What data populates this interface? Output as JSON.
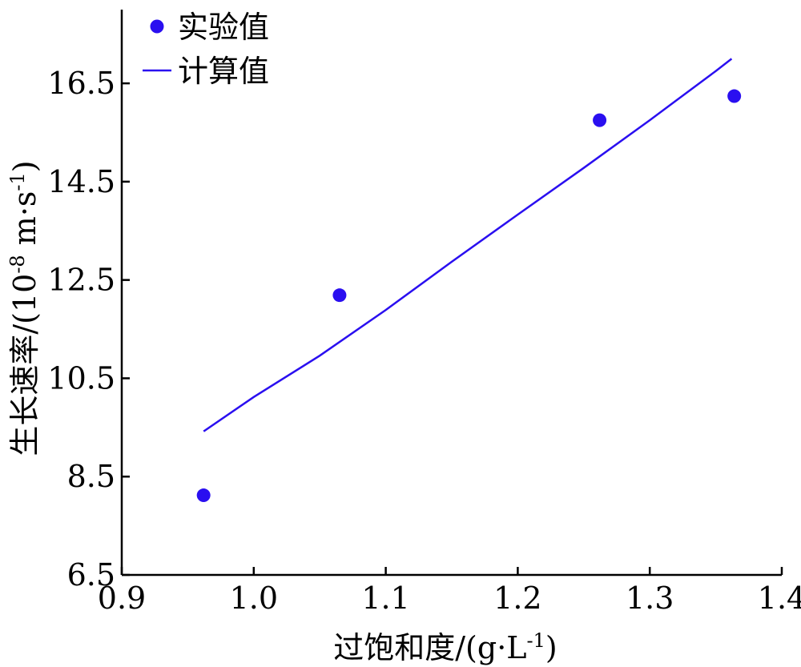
{
  "chart_data": {
    "type": "scatter",
    "title": "",
    "xlabel": "过饱和度/(g·L",
    "xlabel_sup": "-1",
    "xlabel_tail": ")",
    "ylabel": "生长速率/(10",
    "ylabel_sup1": "-8",
    "ylabel_mid": " m·s",
    "ylabel_sup2": "-1",
    "ylabel_tail": ")",
    "xlim": [
      0.9,
      1.4
    ],
    "ylim": [
      6.5,
      18.0
    ],
    "x_ticks": [
      0.9,
      1.0,
      1.1,
      1.2,
      1.3,
      1.4
    ],
    "x_tick_labels": [
      "0.9",
      "1.0",
      "1.1",
      "1.2",
      "1.3",
      "1.4"
    ],
    "y_ticks": [
      6.5,
      8.5,
      10.5,
      12.5,
      14.5,
      16.5
    ],
    "y_tick_labels": [
      "6.5",
      "8.5",
      "10.5",
      "12.5",
      "14.5",
      "16.5"
    ],
    "grid": false,
    "legend_position": "top-left",
    "series": [
      {
        "name": "实验值",
        "kind": "scatter",
        "color": "#2a0ff0",
        "x": [
          0.962,
          1.065,
          1.262,
          1.364
        ],
        "y": [
          8.12,
          12.19,
          15.75,
          16.24
        ]
      },
      {
        "name": "计算值",
        "kind": "line",
        "color": "#2a0ff0",
        "x": [
          0.962,
          1.0,
          1.05,
          1.1,
          1.15,
          1.2,
          1.25,
          1.3,
          1.35,
          1.362
        ],
        "y": [
          9.42,
          10.12,
          10.96,
          11.89,
          12.87,
          13.83,
          14.78,
          15.75,
          16.75,
          17.0
        ]
      }
    ]
  }
}
